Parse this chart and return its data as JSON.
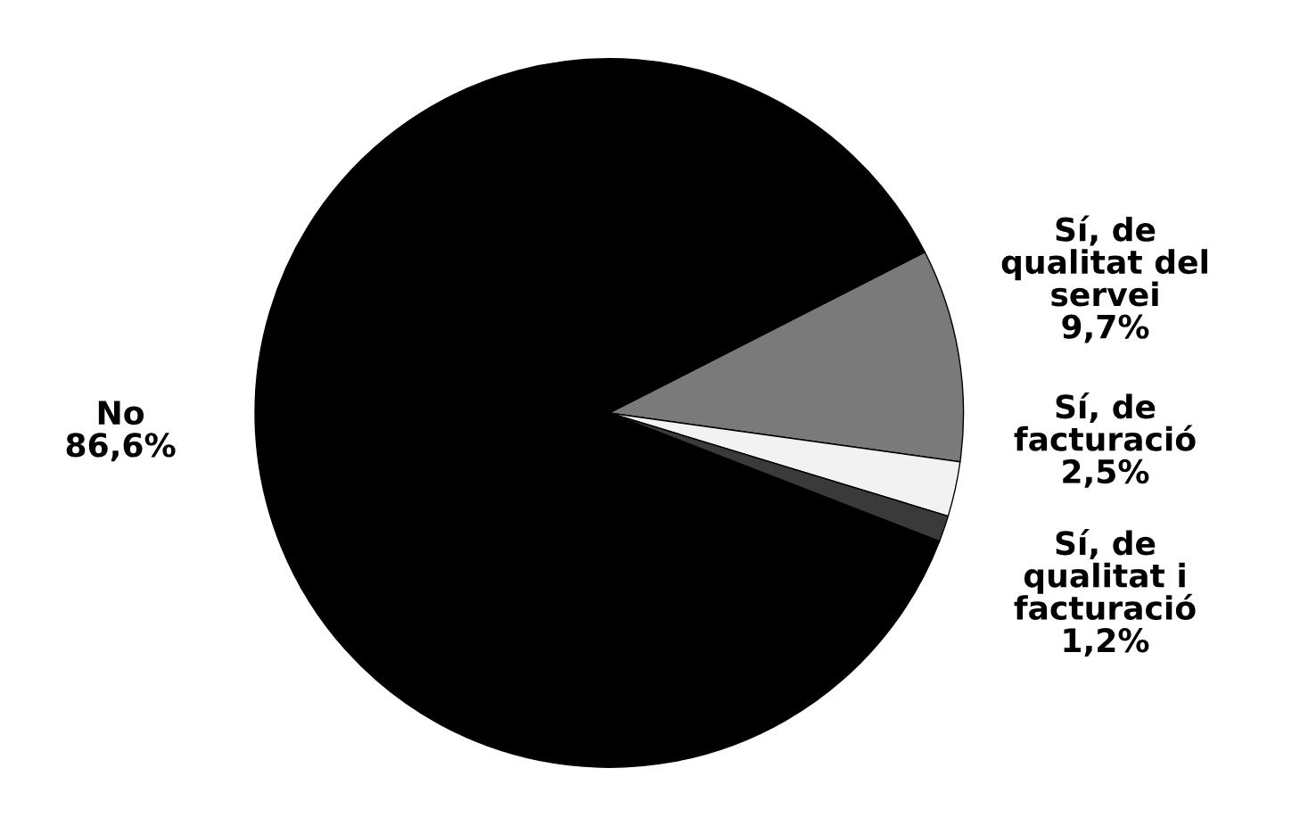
{
  "chart_data": {
    "type": "pie",
    "categories": [
      "Sí, de\nqualitat del\nservei",
      "Sí, de\nfacturació",
      "Sí, de\nqualitat i\nfacturació",
      "No"
    ],
    "values": [
      9.7,
      2.5,
      1.2,
      86.6
    ],
    "value_labels": [
      "9,7%",
      "2,5%",
      "1,2%",
      "86,6%"
    ],
    "colors": [
      "#7a7a7a",
      "#f2f2f2",
      "#3a3a3a",
      "#000000"
    ]
  }
}
